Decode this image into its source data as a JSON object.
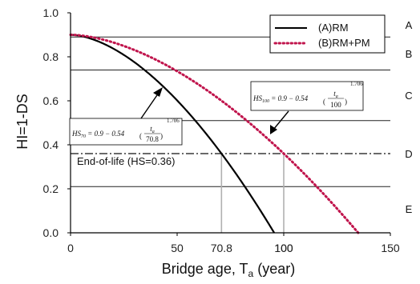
{
  "chart_data": {
    "type": "line",
    "xlabel_main": "Bridge age, T",
    "xlabel_sub": "a",
    "xlabel_unit": " (year)",
    "ylabel": "HI=1-DS",
    "xlim": [
      0,
      150
    ],
    "ylim": [
      0.0,
      1.0
    ],
    "x_ticks": [
      "0",
      "50",
      "100",
      "150"
    ],
    "y_ticks": [
      "0.0",
      "0.2",
      "0.4",
      "0.6",
      "0.8",
      "1.0"
    ],
    "extra_x_labels": [
      {
        "x": 70.8,
        "text": "70.8"
      },
      {
        "x": 100,
        "text": "100"
      }
    ],
    "series": [
      {
        "name": "(A)RM",
        "formula": {
          "a": 0.9,
          "b": 0.54,
          "T": 70.8,
          "n": 1.706
        },
        "color": "#000000",
        "style": "solid"
      },
      {
        "name": "(B)RM+PM",
        "formula": {
          "a": 0.9,
          "b": 0.54,
          "T": 100,
          "n": 1.706
        },
        "color": "#c0144c",
        "style": "dotted"
      }
    ],
    "grade_lines": [
      0.89,
      0.74,
      0.51,
      0.21
    ],
    "grade_labels": [
      {
        "label": "A",
        "y": 0.945
      },
      {
        "label": "B",
        "y": 0.815
      },
      {
        "label": "C",
        "y": 0.625
      },
      {
        "label": "D",
        "y": 0.36
      },
      {
        "label": "E",
        "y": 0.11
      }
    ],
    "end_of_life": {
      "y": 0.36,
      "label": "End-of-life (HS=0.36)"
    },
    "legend_position": "top-right",
    "equations": {
      "hs70": {
        "lhs": "HS",
        "lhs_sub": "70",
        "mid": " = 0.9 − 0.54",
        "num": "t",
        "num_sub": "a",
        "den": "70.8",
        "exp": "1.706"
      },
      "hs100": {
        "lhs": "HS",
        "lhs_sub": "100",
        "mid": " = 0.9 − 0.54",
        "num": "t",
        "num_sub": "a",
        "den": "100",
        "exp": "1.706"
      }
    }
  }
}
